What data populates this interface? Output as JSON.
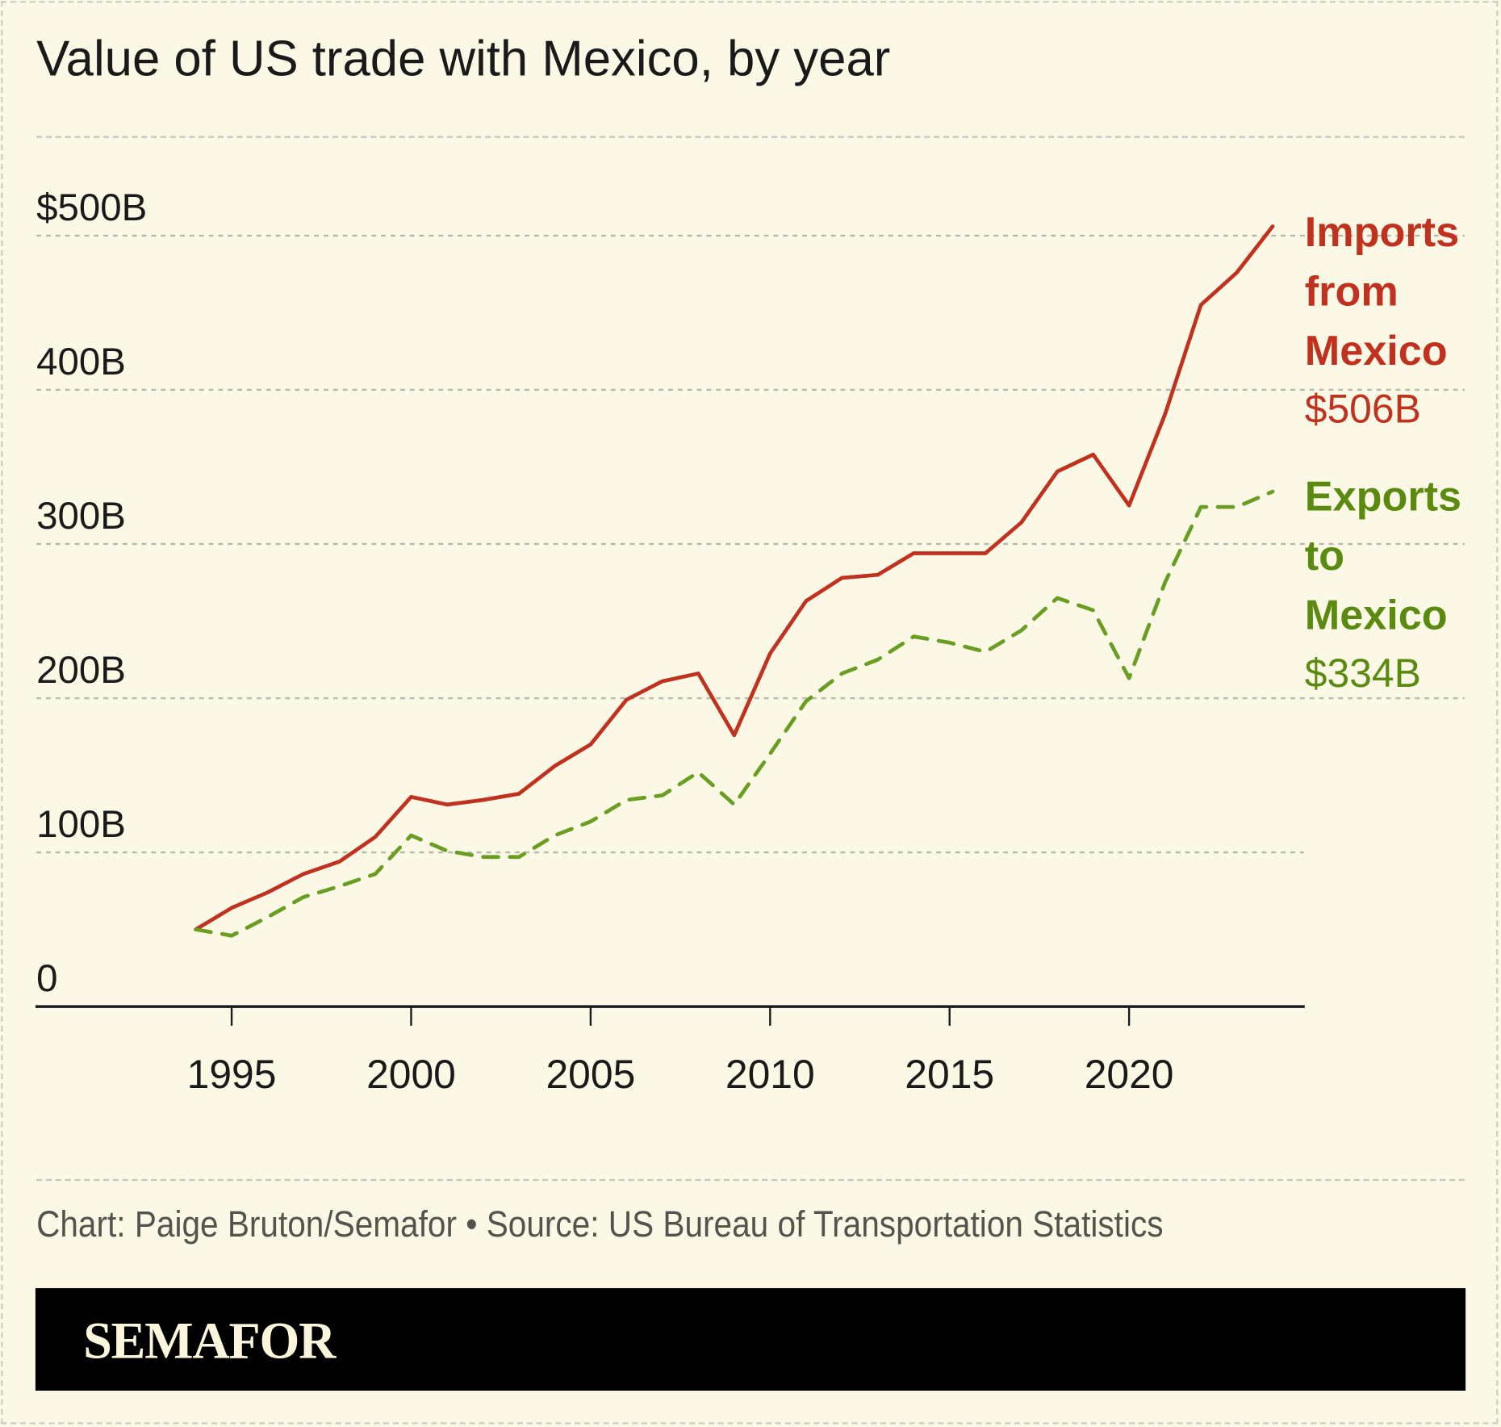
{
  "chart_data": {
    "type": "line",
    "title": "Value of US trade with Mexico, by year",
    "x": [
      1994,
      1995,
      1996,
      1997,
      1998,
      1999,
      2000,
      2001,
      2002,
      2003,
      2004,
      2005,
      2006,
      2007,
      2008,
      2009,
      2010,
      2011,
      2012,
      2013,
      2014,
      2015,
      2016,
      2017,
      2018,
      2019,
      2020,
      2021,
      2022,
      2023,
      2024
    ],
    "series": [
      {
        "name": "Imports from Mexico",
        "label_lines": [
          "Imports",
          "from",
          "Mexico"
        ],
        "end_label": "$506B",
        "color": "#c0321f",
        "style": "solid",
        "values": [
          50,
          64,
          74,
          86,
          94,
          110,
          136,
          131,
          134,
          138,
          156,
          170,
          199,
          211,
          216,
          176,
          229,
          263,
          278,
          280,
          294,
          294,
          294,
          314,
          347,
          358,
          325,
          384,
          455,
          476,
          506
        ]
      },
      {
        "name": "Exports to Mexico",
        "label_lines": [
          "Exports",
          "to",
          "Mexico"
        ],
        "end_label": "$334B",
        "color": "#5a8a0f",
        "line_color": "#6a9e22",
        "style": "dashed",
        "values": [
          50,
          46,
          58,
          71,
          78,
          86,
          111,
          101,
          97,
          97,
          111,
          120,
          134,
          137,
          152,
          131,
          164,
          198,
          216,
          225,
          240,
          236,
          230,
          244,
          265,
          257,
          213,
          275,
          324,
          324,
          334
        ]
      }
    ],
    "y_ticks": [
      0,
      100,
      200,
      300,
      400,
      500
    ],
    "y_tick_labels": [
      "0",
      "100B",
      "200B",
      "300B",
      "400B",
      "$500B"
    ],
    "x_ticks": [
      1995,
      2000,
      2005,
      2010,
      2015,
      2020
    ],
    "x_tick_labels": [
      "1995",
      "2000",
      "2005",
      "2010",
      "2015",
      "2020"
    ],
    "ylim": [
      0,
      500
    ],
    "xlim": [
      1994,
      2024
    ],
    "grid": true,
    "legend": "right-end labels"
  },
  "footer": {
    "credit": "Chart: Paige Bruton/Semafor • Source: US Bureau of Transportation Statistics",
    "logo": "SEMAFOR"
  }
}
